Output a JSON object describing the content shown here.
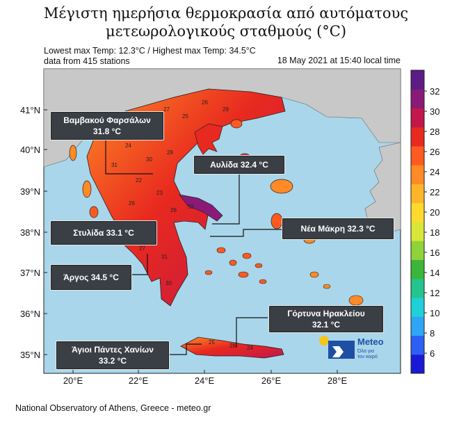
{
  "title": {
    "line1": "Μέγιστη ημερήσια θερμοκρασία από αυτόματους",
    "line2": "μετεωρολογικούς σταθμούς (°C)"
  },
  "info": {
    "line1": "Lowest max Temp: 12.3°C / Highest max Temp: 34.5°C",
    "line2": "data from 415 stations",
    "timestamp": "18 May 2021 at 15:40 local time"
  },
  "credit": "National Observatory of Athens, Greece - meteo.gr",
  "axes": {
    "lat_labels": [
      "41°N",
      "40°N",
      "39°N",
      "38°N",
      "37°N",
      "36°N",
      "35°N"
    ],
    "lon_labels": [
      "20°E",
      "22°E",
      "24°E",
      "26°E",
      "28°E"
    ]
  },
  "colorbar": {
    "ticks": [
      "32",
      "30",
      "28",
      "26",
      "24",
      "22",
      "20",
      "18",
      "16",
      "14",
      "12",
      "10",
      "8",
      "6"
    ],
    "colors": [
      "#1a1ad6",
      "#2d5ff2",
      "#2fa5f5",
      "#20d0d8",
      "#23c48d",
      "#3cb53c",
      "#8fd23a",
      "#d8e63a",
      "#ffd92e",
      "#ffb52a",
      "#ff8a26",
      "#ff5a1f",
      "#e8291f",
      "#c2174a",
      "#8a1a78",
      "#5b1c86"
    ]
  },
  "callouts": [
    {
      "line1": "Βαμβακού Φαρσάλων",
      "line2": "31.8 °C"
    },
    {
      "line1": "Αυλίδα  32.4 °C",
      "line2": ""
    },
    {
      "line1": "Στυλίδα  33.1 °C",
      "line2": ""
    },
    {
      "line1": "Νέα Μάκρη 32.3 °C",
      "line2": ""
    },
    {
      "line1": "Άργος  34.5 °C",
      "line2": ""
    },
    {
      "line1": "Γόρτυνα  Ηρακλείου",
      "line2": "32.1 °C"
    },
    {
      "line1": "Άγιοι Πάντες Χανίων",
      "line2": "33.2 °C"
    }
  ],
  "logo": {
    "name": "Meteo",
    "tagline_1": "Όλα για",
    "tagline_2": "τον καιρό",
    "colors": {
      "sun": "#f5c518",
      "brand": "#1f4fa3"
    }
  },
  "station_labels": [
    "27",
    "25",
    "26",
    "29",
    "24",
    "30",
    "28",
    "31",
    "22",
    "23",
    "26",
    "29",
    "27",
    "31",
    "30",
    "25",
    "28",
    "24",
    "32",
    "26"
  ],
  "colors": {
    "sea": "#a9d6ea",
    "land_other": "#c8c8c8",
    "border": "#222222"
  }
}
